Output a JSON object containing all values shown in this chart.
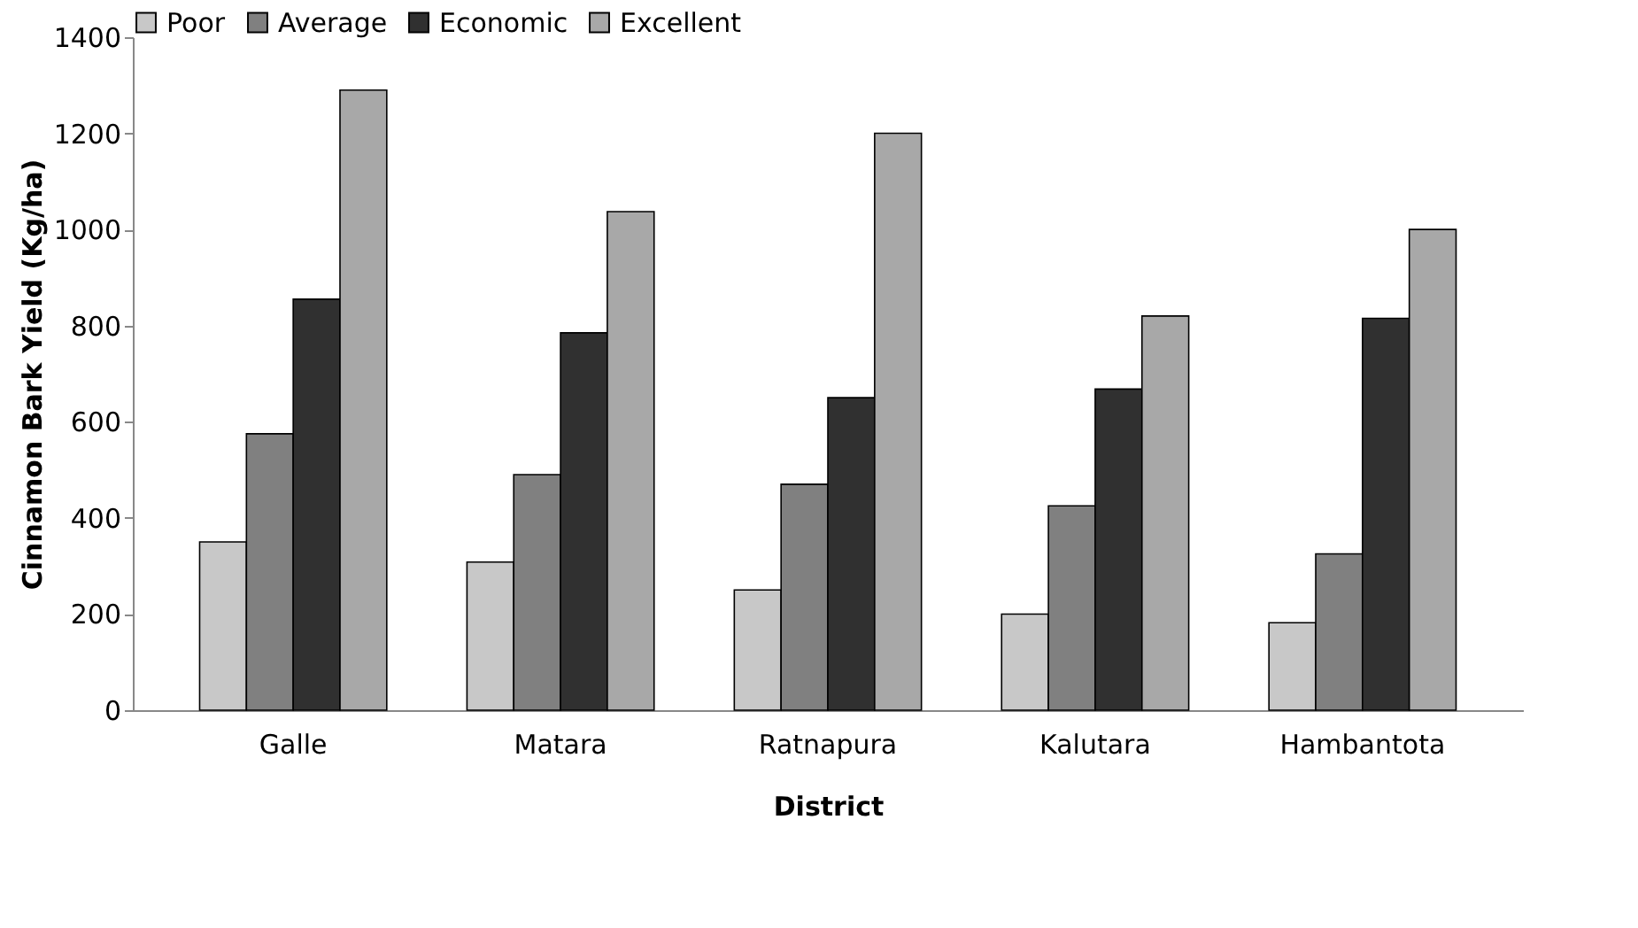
{
  "chart_data": {
    "type": "bar",
    "xlabel": "District",
    "ylabel": "Cinnamon Bark Yield (Kg/ha)",
    "categories": [
      "Galle",
      "Matara",
      "Ratnapura",
      "Kalutara",
      "Hambantota"
    ],
    "series": [
      {
        "name": "Poor",
        "color": "#c8c8c8",
        "values": [
          350,
          308,
          250,
          200,
          182
        ]
      },
      {
        "name": "Average",
        "color": "#808080",
        "values": [
          575,
          490,
          470,
          425,
          325
        ]
      },
      {
        "name": "Economic",
        "color": "#303030",
        "values": [
          855,
          785,
          650,
          668,
          815
        ]
      },
      {
        "name": "Excellent",
        "color": "#a8a8a8",
        "values": [
          1290,
          1037,
          1200,
          820,
          1000
        ]
      }
    ],
    "ylim": [
      0,
      1400
    ],
    "yticks": [
      0,
      200,
      400,
      600,
      800,
      1000,
      1200,
      1400
    ],
    "grid": false,
    "legend": "top"
  }
}
